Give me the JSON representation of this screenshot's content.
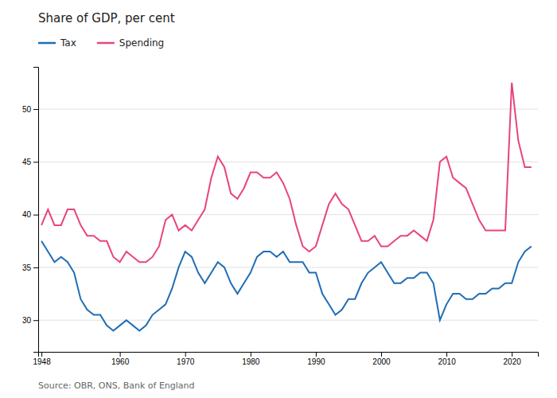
{
  "chart_data": {
    "type": "line",
    "title": "Share of GDP, per cent",
    "source": "Source: OBR, ONS, Bank of England",
    "x": [
      1948,
      1949,
      1950,
      1951,
      1952,
      1953,
      1954,
      1955,
      1956,
      1957,
      1958,
      1959,
      1960,
      1961,
      1962,
      1963,
      1964,
      1965,
      1966,
      1967,
      1968,
      1969,
      1970,
      1971,
      1972,
      1973,
      1974,
      1975,
      1976,
      1977,
      1978,
      1979,
      1980,
      1981,
      1982,
      1983,
      1984,
      1985,
      1986,
      1987,
      1988,
      1989,
      1990,
      1991,
      1992,
      1993,
      1994,
      1995,
      1996,
      1997,
      1998,
      1999,
      2000,
      2001,
      2002,
      2003,
      2004,
      2005,
      2006,
      2007,
      2008,
      2009,
      2010,
      2011,
      2012,
      2013,
      2014,
      2015,
      2016,
      2017,
      2018,
      2019,
      2020,
      2021,
      2022,
      2023
    ],
    "series": [
      {
        "name": "Tax",
        "color": "#1f6db5",
        "values": [
          37.5,
          36.5,
          35.5,
          36.0,
          35.5,
          34.5,
          32.0,
          31.0,
          30.5,
          30.5,
          29.5,
          29.0,
          29.5,
          30.0,
          29.5,
          29.0,
          29.5,
          30.5,
          31.0,
          31.5,
          33.0,
          35.0,
          36.5,
          36.0,
          34.5,
          33.5,
          34.5,
          35.5,
          35.0,
          33.5,
          32.5,
          33.5,
          34.5,
          36.0,
          36.5,
          36.5,
          36.0,
          36.5,
          35.5,
          35.5,
          35.5,
          34.5,
          34.5,
          32.5,
          31.5,
          30.5,
          31.0,
          32.0,
          32.0,
          33.5,
          34.5,
          35.0,
          35.5,
          34.5,
          33.5,
          33.5,
          34.0,
          34.0,
          34.5,
          34.5,
          33.5,
          30.0,
          31.5,
          32.5,
          32.5,
          32.0,
          32.0,
          32.5,
          32.5,
          33.0,
          33.0,
          33.5,
          33.5,
          35.5,
          36.5,
          37.0
        ]
      },
      {
        "name": "Spending",
        "color": "#e8457a",
        "values": [
          39.0,
          40.5,
          39.0,
          39.0,
          40.5,
          40.5,
          39.0,
          38.0,
          38.0,
          37.5,
          37.5,
          36.0,
          35.5,
          36.5,
          36.0,
          35.5,
          35.5,
          36.0,
          37.0,
          39.5,
          40.0,
          38.5,
          39.0,
          38.5,
          39.5,
          40.5,
          43.5,
          45.5,
          44.5,
          42.0,
          41.5,
          42.5,
          44.0,
          44.0,
          43.5,
          43.5,
          44.0,
          43.0,
          41.5,
          39.0,
          37.0,
          36.5,
          37.0,
          39.0,
          41.0,
          42.0,
          41.0,
          40.5,
          39.0,
          37.5,
          37.5,
          38.0,
          37.0,
          37.0,
          37.5,
          38.0,
          38.0,
          38.5,
          38.0,
          37.5,
          39.5,
          45.0,
          45.5,
          43.5,
          43.0,
          42.5,
          41.0,
          39.5,
          38.5,
          38.5,
          38.5,
          38.5,
          52.5,
          47.0,
          44.5,
          44.5
        ]
      }
    ],
    "xlim": [
      1947.5,
      2024
    ],
    "xticks": [
      1948,
      1960,
      1970,
      1980,
      1990,
      2000,
      2010,
      2020
    ],
    "ylim": [
      27,
      54
    ],
    "yticks": [
      30,
      35,
      40,
      45,
      50
    ],
    "grid": true,
    "legend": "top-left"
  }
}
